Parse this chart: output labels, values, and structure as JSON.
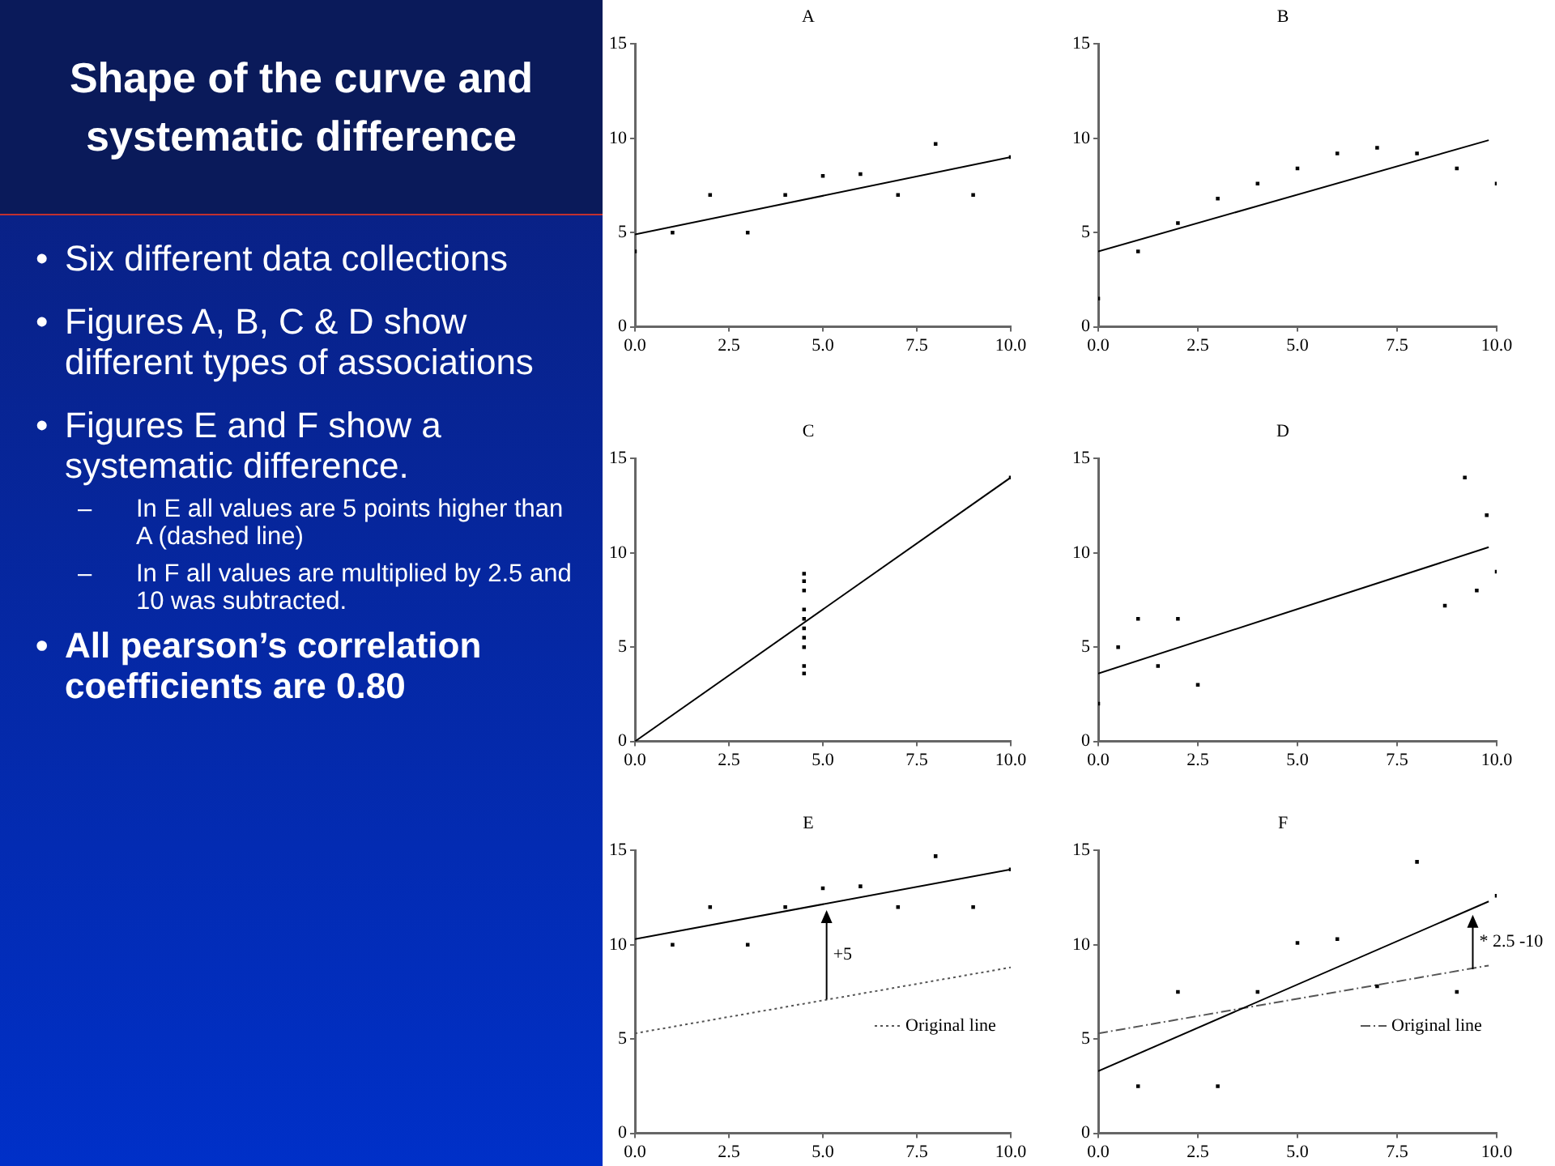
{
  "chart_data": [
    {
      "type": "other",
      "title": "Shape of the curve and systematic difference",
      "annotations": [
        "• Six different data collections",
        "• Figures A, B, C & D show different types of associations",
        "• Figures E and F show a systematic difference.",
        "– In E all values are 5 points higher than A (dashed line)",
        "– In F all values are multiplied by 2.5 and 10 was subtracted.",
        "• All pearson’s correlation coefficients are 0.80"
      ]
    },
    {
      "type": "scatter",
      "title": "A",
      "xlim": [
        0,
        10
      ],
      "ylim": [
        0,
        15
      ],
      "xticks": [
        {
          "value": 0,
          "label": "0.0"
        },
        {
          "value": 2.5,
          "label": "2.5"
        },
        {
          "value": 5,
          "label": "5.0"
        },
        {
          "value": 7.5,
          "label": "7.5"
        },
        {
          "value": 10,
          "label": "10.0"
        }
      ],
      "yticks": [
        0,
        5,
        10,
        15
      ],
      "series": [
        {
          "type": "scatter",
          "marker": "square",
          "color": "#000000",
          "x": [
            0,
            1,
            2,
            3,
            4,
            5,
            6,
            7,
            8,
            9,
            10
          ],
          "values": [
            4,
            5,
            7,
            5,
            7,
            8,
            8.1,
            7,
            9.7,
            7,
            9
          ]
        },
        {
          "type": "line",
          "color": "#000000",
          "x": [
            0,
            10
          ],
          "values": [
            4.9,
            9.0
          ]
        }
      ]
    },
    {
      "type": "scatter",
      "title": "B",
      "xlim": [
        0,
        10
      ],
      "ylim": [
        0,
        15
      ],
      "xticks": [
        {
          "value": 0,
          "label": "0.0"
        },
        {
          "value": 2.5,
          "label": "2.5"
        },
        {
          "value": 5,
          "label": "5.0"
        },
        {
          "value": 7.5,
          "label": "7.5"
        },
        {
          "value": 10,
          "label": "10.0"
        }
      ],
      "yticks": [
        0,
        5,
        10,
        15
      ],
      "series": [
        {
          "type": "scatter",
          "marker": "square",
          "color": "#000000",
          "x": [
            0,
            1,
            2,
            3,
            4,
            5,
            6,
            7,
            8,
            9,
            10
          ],
          "values": [
            1.5,
            4.0,
            5.5,
            6.8,
            7.6,
            8.4,
            9.2,
            9.5,
            9.2,
            8.4,
            7.6
          ]
        },
        {
          "type": "line",
          "color": "#000000",
          "x": [
            0,
            9.8
          ],
          "values": [
            4.0,
            9.9
          ]
        }
      ]
    },
    {
      "type": "scatter",
      "title": "C",
      "xlim": [
        0,
        10
      ],
      "ylim": [
        0,
        15
      ],
      "xticks": [
        {
          "value": 0,
          "label": "0.0"
        },
        {
          "value": 2.5,
          "label": "2.5"
        },
        {
          "value": 5,
          "label": "5.0"
        },
        {
          "value": 7.5,
          "label": "7.5"
        },
        {
          "value": 10,
          "label": "10.0"
        }
      ],
      "yticks": [
        0,
        5,
        10,
        15
      ],
      "series": [
        {
          "type": "scatter",
          "marker": "square",
          "color": "#000000",
          "x": [
            4.5,
            4.5,
            4.5,
            4.5,
            4.5,
            4.5,
            4.5,
            4.5,
            4.5,
            4.5,
            10
          ],
          "values": [
            8.9,
            8.5,
            8.0,
            7.0,
            6.5,
            6.0,
            5.5,
            5.0,
            4.0,
            3.6,
            14.0
          ]
        },
        {
          "type": "line",
          "color": "#000000",
          "x": [
            0,
            10
          ],
          "values": [
            0,
            14
          ]
        }
      ]
    },
    {
      "type": "scatter",
      "title": "D",
      "xlim": [
        0,
        10
      ],
      "ylim": [
        0,
        15
      ],
      "xticks": [
        {
          "value": 0,
          "label": "0.0"
        },
        {
          "value": 2.5,
          "label": "2.5"
        },
        {
          "value": 5,
          "label": "5.0"
        },
        {
          "value": 7.5,
          "label": "7.5"
        },
        {
          "value": 10,
          "label": "10.0"
        }
      ],
      "yticks": [
        0,
        5,
        10,
        15
      ],
      "series": [
        {
          "type": "scatter",
          "marker": "square",
          "color": "#000000",
          "x": [
            0,
            0.5,
            1,
            1.5,
            2,
            2.5,
            8.7,
            9.2,
            9.5,
            9.75,
            10
          ],
          "values": [
            2.0,
            5.0,
            6.5,
            4.0,
            6.5,
            3.0,
            7.2,
            14.0,
            8.0,
            12.0,
            9.0
          ]
        },
        {
          "type": "line",
          "color": "#000000",
          "x": [
            0,
            9.8
          ],
          "values": [
            3.6,
            10.3
          ]
        }
      ]
    },
    {
      "type": "scatter",
      "title": "E",
      "xlim": [
        0,
        10
      ],
      "ylim": [
        0,
        15
      ],
      "xticks": [
        {
          "value": 0,
          "label": "0.0"
        },
        {
          "value": 2.5,
          "label": "2.5"
        },
        {
          "value": 5,
          "label": "5.0"
        },
        {
          "value": 7.5,
          "label": "7.5"
        },
        {
          "value": 10,
          "label": "10.0"
        }
      ],
      "yticks": [
        0,
        5,
        10,
        15
      ],
      "legend": "right",
      "annotations": [
        {
          "text": "+5",
          "x": 5.1,
          "y": 7.1
        }
      ],
      "series": [
        {
          "type": "scatter",
          "marker": "square",
          "color": "#000000",
          "x": [
            1,
            2,
            3,
            4,
            5,
            6,
            7,
            8,
            9,
            10
          ],
          "values": [
            10,
            12,
            10,
            12,
            13,
            13.1,
            12,
            14.7,
            12,
            14
          ]
        },
        {
          "type": "line",
          "color": "#000000",
          "x": [
            0,
            10
          ],
          "values": [
            10.3,
            14.0
          ]
        },
        {
          "type": "line",
          "name": "Original line",
          "line_style": "dotted",
          "color": "#555555",
          "x": [
            0,
            10
          ],
          "values": [
            5.3,
            8.8
          ]
        }
      ]
    },
    {
      "type": "scatter",
      "title": "F",
      "xlim": [
        0,
        10
      ],
      "ylim": [
        0,
        15
      ],
      "xticks": [
        {
          "value": 0,
          "label": "0.0"
        },
        {
          "value": 2.5,
          "label": "2.5"
        },
        {
          "value": 5,
          "label": "5.0"
        },
        {
          "value": 7.5,
          "label": "7.5"
        },
        {
          "value": 10,
          "label": "10.0"
        }
      ],
      "yticks": [
        0,
        5,
        10,
        15
      ],
      "legend": "right",
      "annotations": [
        {
          "text": "* 2.5 -10",
          "x": 9.4,
          "y": 8.7
        }
      ],
      "series": [
        {
          "type": "scatter",
          "marker": "square",
          "color": "#000000",
          "x": [
            1,
            2,
            3,
            4,
            5,
            6,
            7,
            8,
            9,
            10
          ],
          "values": [
            2.5,
            7.5,
            2.5,
            7.5,
            10.1,
            10.3,
            7.8,
            14.4,
            7.5,
            12.6
          ]
        },
        {
          "type": "line",
          "color": "#000000",
          "x": [
            0,
            9.8
          ],
          "values": [
            3.3,
            12.3
          ]
        },
        {
          "type": "line",
          "name": "Original line",
          "line_style": "dashed",
          "color": "#555555",
          "x": [
            0,
            9.8
          ],
          "values": [
            5.3,
            8.9
          ]
        }
      ]
    }
  ]
}
